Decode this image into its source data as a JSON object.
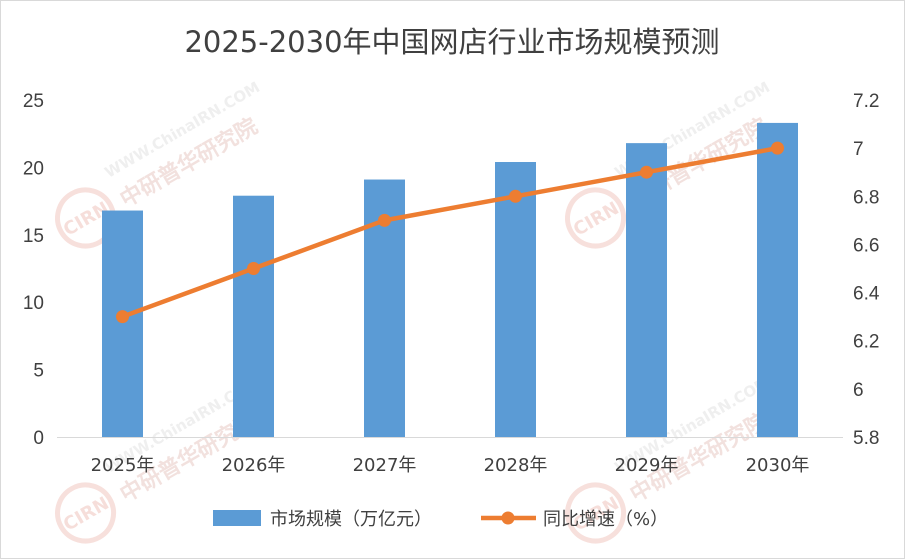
{
  "chart_data": {
    "type": "bar",
    "title": "2025-2030年中国网店行业市场规模预测",
    "categories": [
      "2025年",
      "2026年",
      "2027年",
      "2028年",
      "2029年",
      "2030年"
    ],
    "series": [
      {
        "name": "市场规模（万亿元）",
        "type": "bar",
        "axis": "left",
        "color": "#5B9BD5",
        "values": [
          16.8,
          17.9,
          19.1,
          20.4,
          21.8,
          23.3
        ]
      },
      {
        "name": "同比增速（%）",
        "type": "line",
        "axis": "right",
        "color": "#ED7D31",
        "values": [
          6.3,
          6.5,
          6.7,
          6.8,
          6.9,
          7.0
        ]
      }
    ],
    "y_left": {
      "range": [
        0,
        25
      ],
      "ticks": [
        "0",
        "5",
        "10",
        "15",
        "20",
        "25"
      ]
    },
    "y_right": {
      "range": [
        5.8,
        7.2
      ],
      "ticks": [
        "5.8",
        "6",
        "6.2",
        "6.4",
        "6.6",
        "6.8",
        "7",
        "7.2"
      ]
    },
    "grid": false,
    "legend_position": "bottom"
  },
  "watermark": {
    "url": "WWW.ChinaIRN.COM",
    "org": "中研普华研究院",
    "badge": "CIRN"
  }
}
